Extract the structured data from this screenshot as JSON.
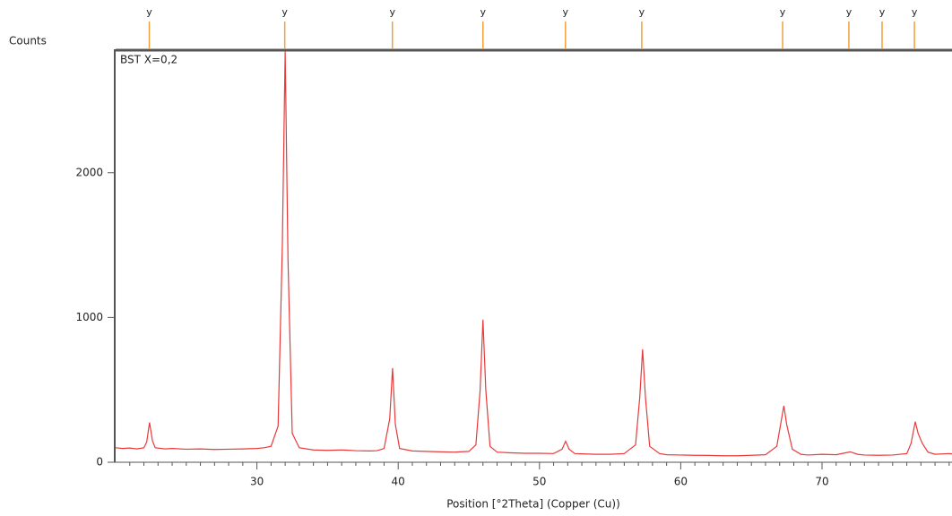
{
  "chart_data": {
    "type": "line",
    "y_label": "Counts",
    "x_label": "Position [°2Theta] (Copper (Cu))",
    "xlim": [
      20,
      79.2
    ],
    "ylim": [
      0,
      2840
    ],
    "xticks": [
      30,
      40,
      50,
      60,
      70
    ],
    "xminorticks": [
      21,
      22,
      23,
      24,
      25,
      26,
      27,
      28,
      29,
      31,
      32,
      33,
      34,
      35,
      36,
      37,
      38,
      39,
      41,
      42,
      43,
      44,
      45,
      46,
      47,
      48,
      49,
      51,
      52,
      53,
      54,
      55,
      56,
      57,
      58,
      59,
      61,
      62,
      63,
      64,
      65,
      66,
      67,
      68,
      69,
      71,
      72,
      73,
      74,
      75,
      76,
      77,
      78,
      79
    ],
    "yticks": [
      0,
      1000,
      2000
    ],
    "peak_markers": {
      "color": "#f0a040",
      "positions": [
        22.38,
        31.97,
        39.59,
        46.0,
        51.84,
        57.24,
        67.21,
        71.9,
        74.25,
        76.54
      ],
      "labels": [
        "y",
        "y",
        "y",
        "y",
        "y",
        "y",
        "y",
        "y",
        "y",
        "y"
      ]
    },
    "x": [
      20,
      20.5,
      21,
      21.5,
      22,
      22.2,
      22.4,
      22.6,
      22.8,
      23.5,
      24,
      25,
      26,
      27,
      28,
      29,
      30,
      30.5,
      31,
      31.5,
      31.8,
      32.0,
      32.2,
      32.5,
      33,
      34,
      35,
      36,
      37,
      38,
      38.5,
      39,
      39.4,
      39.6,
      39.8,
      40.1,
      41,
      42,
      43,
      44,
      45,
      45.5,
      45.8,
      46.0,
      46.2,
      46.5,
      47,
      48,
      49,
      50,
      51,
      51.6,
      51.85,
      52.1,
      52.5,
      53,
      54,
      55,
      56,
      56.8,
      57.1,
      57.3,
      57.5,
      57.8,
      58.5,
      59,
      60,
      61,
      62,
      63,
      64,
      65,
      66,
      66.8,
      67.1,
      67.3,
      67.5,
      67.9,
      68.5,
      69,
      70,
      71,
      72,
      72.5,
      73,
      74,
      75,
      76,
      76.3,
      76.6,
      76.8,
      77.1,
      77.5,
      78,
      79,
      79.2
    ],
    "series": [
      {
        "name": "BST X=0,2",
        "color": "#e83a3a",
        "values": [
          100,
          95,
          98,
          92,
          100,
          140,
          275,
          150,
          100,
          92,
          95,
          90,
          92,
          88,
          90,
          92,
          95,
          100,
          110,
          250,
          1500,
          2840,
          1400,
          200,
          100,
          85,
          82,
          85,
          80,
          78,
          80,
          95,
          300,
          650,
          260,
          95,
          78,
          75,
          72,
          70,
          75,
          120,
          500,
          985,
          500,
          110,
          70,
          65,
          62,
          62,
          60,
          90,
          145,
          90,
          60,
          58,
          55,
          55,
          60,
          120,
          450,
          780,
          450,
          110,
          60,
          52,
          50,
          48,
          47,
          45,
          45,
          48,
          52,
          110,
          280,
          390,
          260,
          90,
          55,
          50,
          55,
          52,
          72,
          55,
          50,
          48,
          50,
          60,
          130,
          280,
          200,
          130,
          70,
          55,
          60,
          58
        ]
      }
    ]
  }
}
